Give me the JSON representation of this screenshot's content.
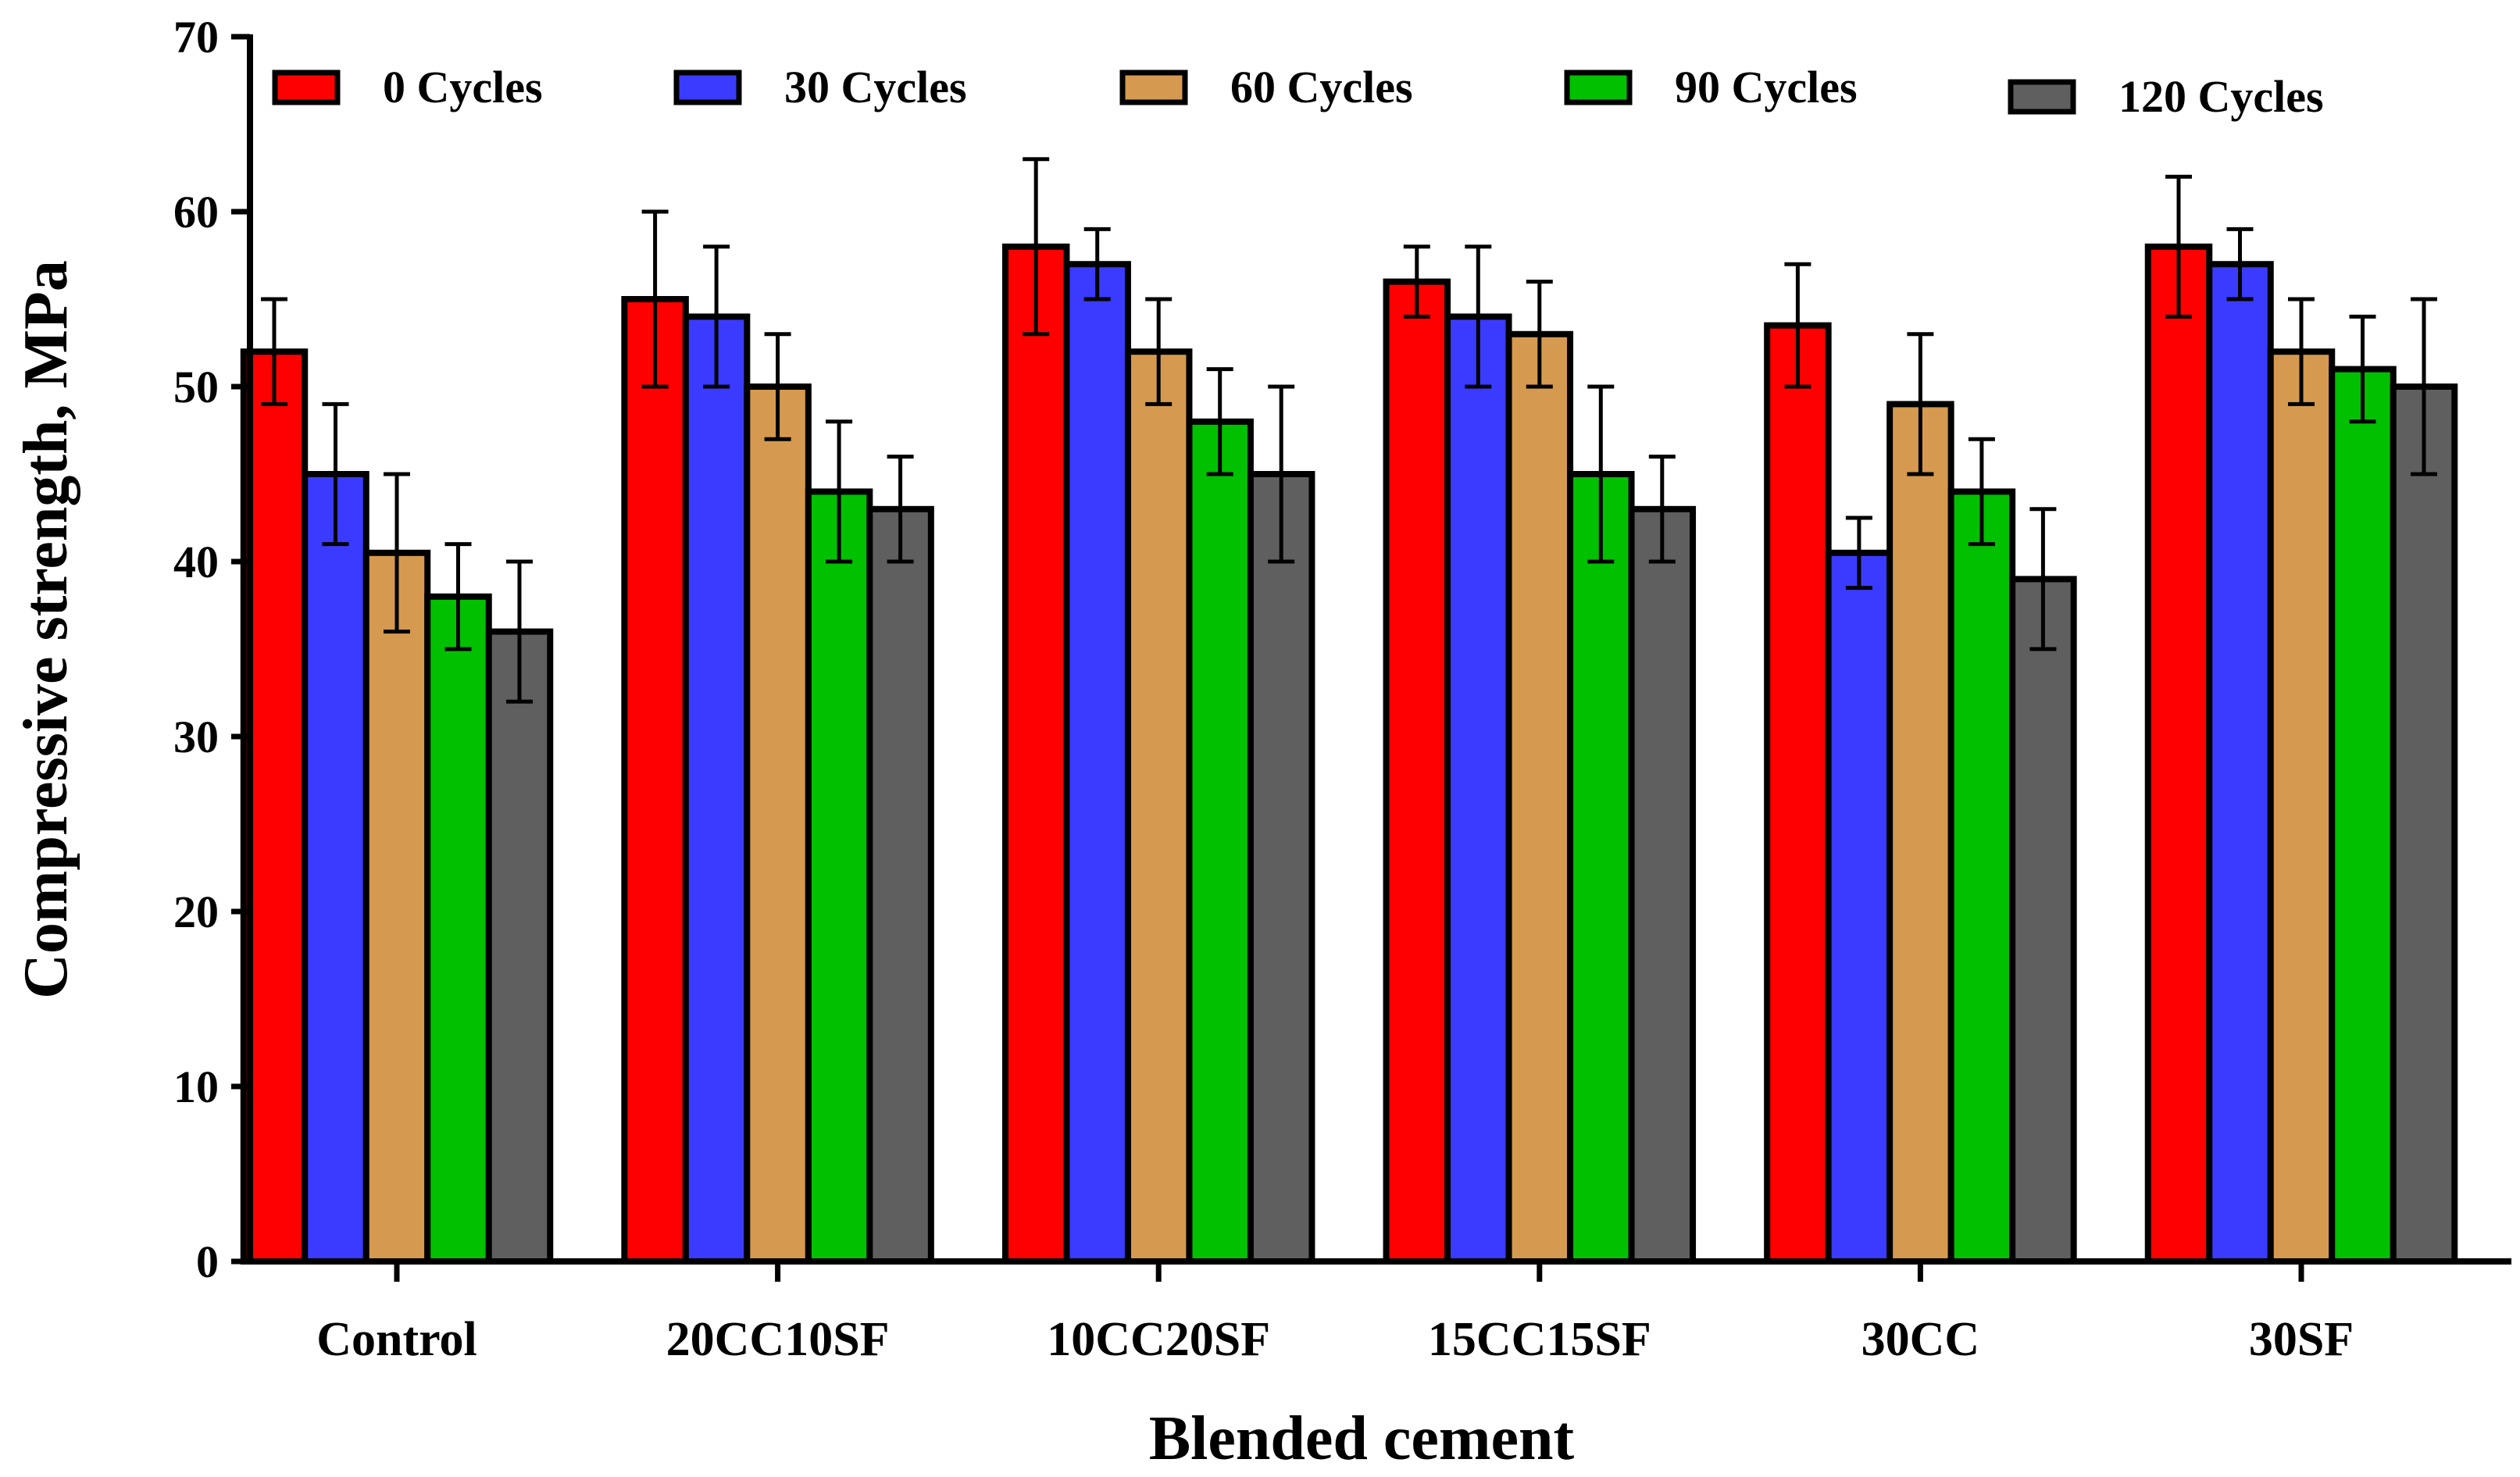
{
  "chart_data": {
    "type": "bar",
    "title": "",
    "xlabel": "Blended cement",
    "ylabel": "Compressive strength, MPa",
    "ylim": [
      0,
      70
    ],
    "yticks": [
      "0",
      "10",
      "20",
      "30",
      "40",
      "50",
      "60",
      "70"
    ],
    "grid": false,
    "legend_position": "top",
    "categories": [
      "Control",
      "20CC10SF",
      "10CC20SF",
      "15CC15SF",
      "30CC",
      "30SF"
    ],
    "series": [
      {
        "name": "0 Cycles",
        "color": "#ff0000",
        "values": [
          52,
          55,
          58,
          56,
          53.5,
          58
        ],
        "errors": [
          3,
          5,
          5,
          2,
          3.5,
          4
        ]
      },
      {
        "name": "30 Cycles",
        "color": "#3b3bff",
        "values": [
          45,
          54,
          57,
          54,
          40.5,
          57
        ],
        "errors": [
          4,
          4,
          2,
          4,
          2,
          2
        ]
      },
      {
        "name": "60 Cycles",
        "color": "#d59a4f",
        "values": [
          40.5,
          50,
          52,
          53,
          49,
          52
        ],
        "errors": [
          4.5,
          3,
          3,
          3,
          4,
          3
        ]
      },
      {
        "name": "90 Cycles",
        "color": "#00c000",
        "values": [
          38,
          44,
          48,
          45,
          44,
          51
        ],
        "errors": [
          3,
          4,
          3,
          5,
          3,
          3
        ]
      },
      {
        "name": "120 Cycles",
        "color": "#5f5f5f",
        "values": [
          36,
          43,
          45,
          43,
          39,
          50
        ],
        "errors": [
          4,
          3,
          5,
          3,
          4,
          5
        ]
      }
    ]
  }
}
